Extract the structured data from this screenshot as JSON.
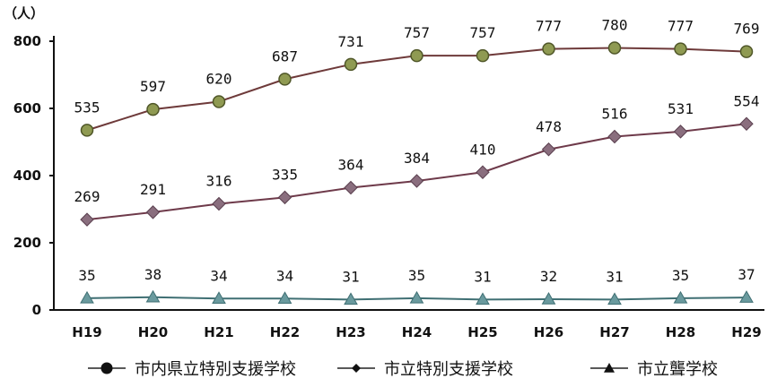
{
  "chart_data": {
    "type": "line",
    "unit_label": "（人）",
    "categories": [
      "H19",
      "H20",
      "H21",
      "H22",
      "H23",
      "H24",
      "H25",
      "H26",
      "H27",
      "H28",
      "H29"
    ],
    "ylim": [
      0,
      800
    ],
    "yticks": [
      0,
      200,
      400,
      600,
      800
    ],
    "grid": false,
    "legend_position": "bottom",
    "series": [
      {
        "name": "市内県立特別支援学校",
        "marker": "circle",
        "values": [
          535,
          597,
          620,
          687,
          731,
          757,
          757,
          777,
          780,
          777,
          769
        ],
        "line_color": "#6e3a3a",
        "marker_fill": "#8f9a52",
        "marker_stroke": "#4f5628"
      },
      {
        "name": "市立特別支援学校",
        "marker": "diamond",
        "values": [
          269,
          291,
          316,
          335,
          364,
          384,
          410,
          478,
          516,
          531,
          554
        ],
        "line_color": "#6e3a4a",
        "marker_fill": "#8a6e7e",
        "marker_stroke": "#5a3f4e"
      },
      {
        "name": "市立聾学校",
        "marker": "triangle",
        "values": [
          35,
          38,
          34,
          34,
          31,
          35,
          31,
          32,
          31,
          35,
          37
        ],
        "line_color": "#3f6f73",
        "marker_fill": "#6a9a9e",
        "marker_stroke": "#3f6f73"
      }
    ]
  }
}
